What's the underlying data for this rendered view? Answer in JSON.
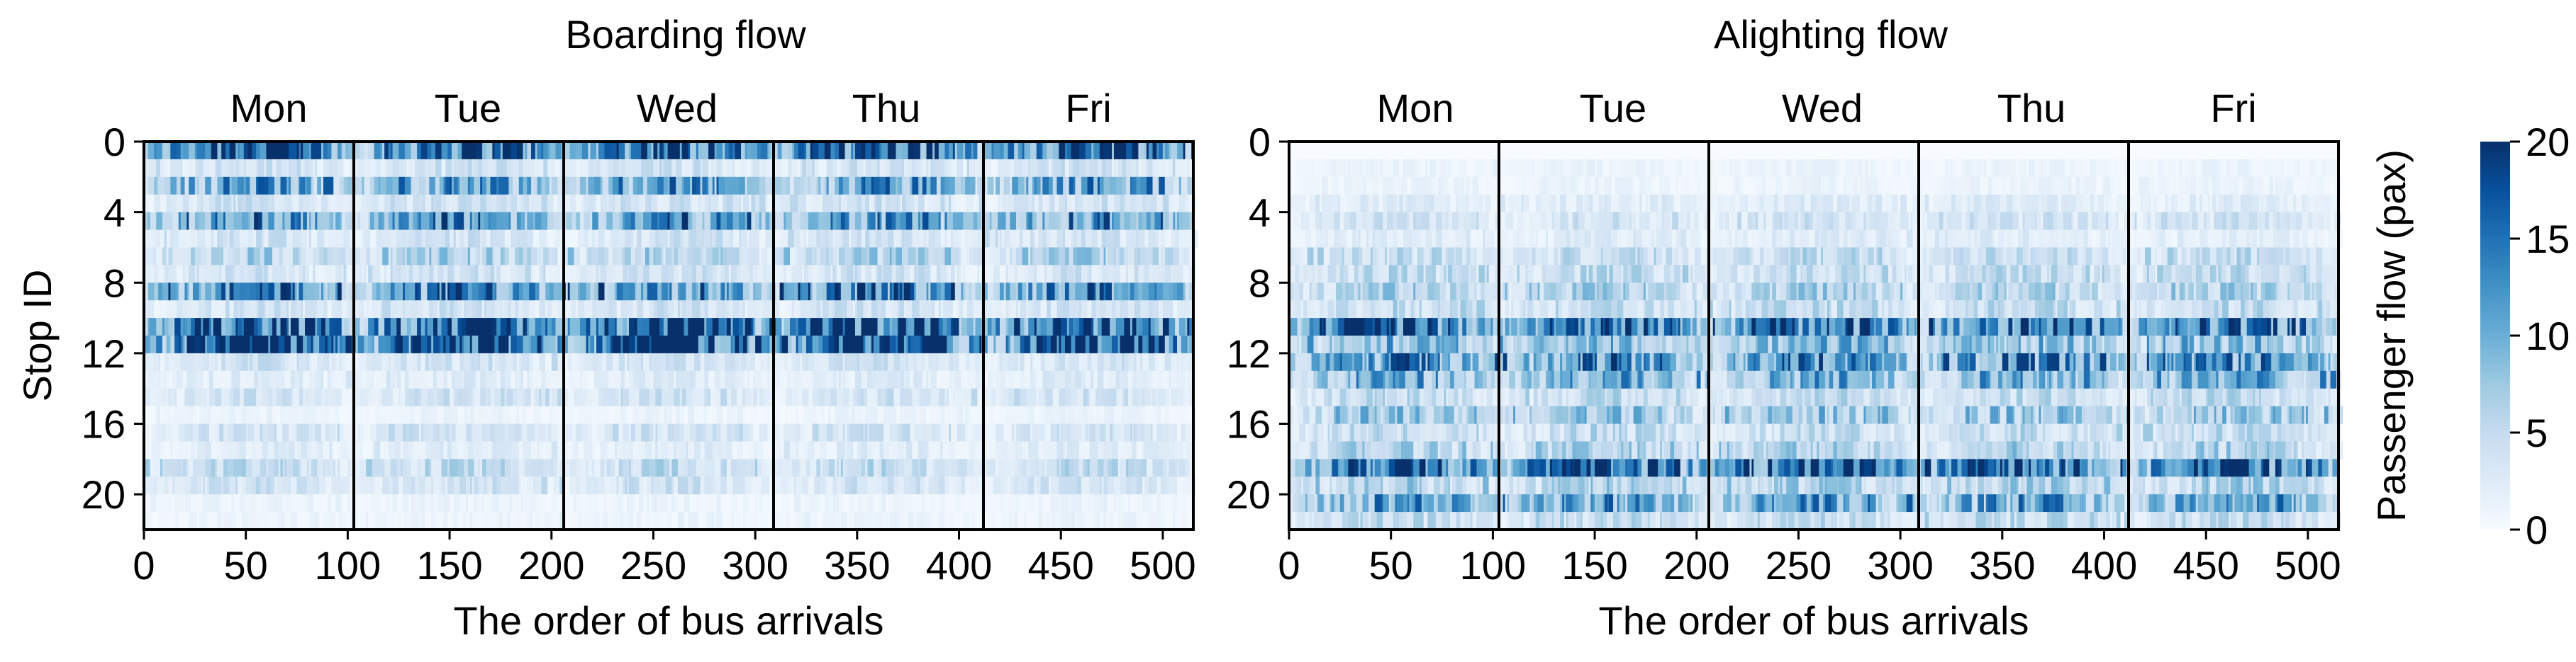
{
  "chart_data": [
    {
      "type": "heatmap",
      "title": "Boarding flow",
      "xlabel": "The order of bus arrivals",
      "ylabel": "Stop ID",
      "xlim": [
        0,
        515
      ],
      "ylim": [
        22,
        0
      ],
      "x_ticks": [
        0,
        50,
        100,
        150,
        200,
        250,
        300,
        350,
        400,
        450,
        500
      ],
      "y_ticks": [
        0,
        4,
        8,
        12,
        16,
        20
      ],
      "day_labels": [
        "Mon",
        "Tue",
        "Wed",
        "Thu",
        "Fri"
      ],
      "day_boundaries": [
        103,
        206,
        309,
        412
      ],
      "stops": 22,
      "arrivals": 515,
      "stop_mean_intensity": [
        14,
        3,
        9,
        3,
        10,
        3,
        5,
        3,
        11,
        3,
        15,
        16,
        3,
        2,
        3,
        1,
        3,
        2,
        4,
        3,
        1,
        1
      ]
    },
    {
      "type": "heatmap",
      "title": "Alighting flow",
      "xlabel": "The order of bus arrivals",
      "ylabel": "",
      "xlim": [
        0,
        515
      ],
      "ylim": [
        22,
        0
      ],
      "x_ticks": [
        0,
        50,
        100,
        150,
        200,
        250,
        300,
        350,
        400,
        450,
        500
      ],
      "y_ticks": [
        0,
        4,
        8,
        12,
        16,
        20
      ],
      "day_labels": [
        "Mon",
        "Tue",
        "Wed",
        "Thu",
        "Fri"
      ],
      "day_boundaries": [
        103,
        206,
        309,
        412
      ],
      "stops": 22,
      "arrivals": 515,
      "stop_mean_intensity": [
        0,
        1,
        1,
        2,
        3,
        2,
        4,
        4,
        5,
        4,
        13,
        7,
        10,
        8,
        4,
        6,
        4,
        5,
        14,
        5,
        9,
        4
      ]
    }
  ],
  "colorbar": {
    "label": "Passenger flow (pax)",
    "min": 0,
    "max": 20,
    "ticks": [
      0,
      5,
      10,
      15,
      20
    ],
    "colormap": "Blues",
    "color_low": "#f7fbff",
    "color_high": "#08306b"
  }
}
